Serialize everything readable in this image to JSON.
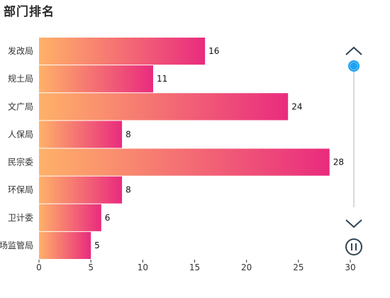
{
  "title": "部门排名",
  "colors": {
    "bar_start": "#FFB169",
    "bar_end": "#E92B7E",
    "slider_handle": "#1DA1F2",
    "slider_track": "#d9d9d9",
    "control": "#2f4554"
  },
  "controls": {
    "up_icon": "chevron-up-icon",
    "down_icon": "chevron-down-icon",
    "pause_icon": "pause-icon"
  },
  "chart_data": {
    "type": "bar",
    "orientation": "horizontal",
    "title": "部门排名",
    "categories": [
      "发改局",
      "规土局",
      "文广局",
      "人保局",
      "民宗委",
      "环保局",
      "卫计委",
      "场监管局"
    ],
    "values": [
      16,
      11,
      24,
      8,
      28,
      8,
      6,
      5
    ],
    "xlim": [
      0,
      30
    ],
    "xticks": [
      0,
      5,
      10,
      15,
      20,
      25,
      30
    ],
    "grid": false,
    "legend": "none",
    "data_labels": true
  }
}
